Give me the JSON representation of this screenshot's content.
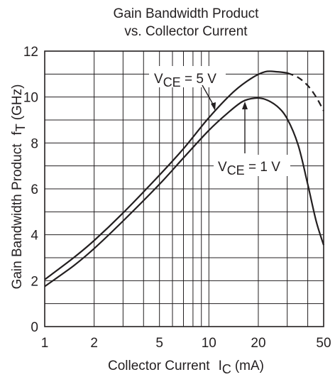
{
  "chart_data": {
    "type": "line",
    "title": [
      "Gain Bandwidth Product",
      "vs. Collector Current"
    ],
    "xlabel": {
      "main": "Collector Current",
      "sym": "I",
      "sub": "C",
      "unit": "(mA)"
    },
    "ylabel": {
      "main": "Gain Bandwidth Product",
      "sym": "f",
      "sub": "T",
      "unit": "(GHz)"
    },
    "x_scale": "log",
    "xlim": [
      1,
      50
    ],
    "ylim": [
      0,
      12
    ],
    "x_ticks": [
      1,
      2,
      5,
      10,
      20,
      50
    ],
    "x_tick_labels": [
      "1",
      "2",
      "5",
      "10",
      "20",
      "50"
    ],
    "y_ticks": [
      0,
      2,
      4,
      6,
      8,
      10,
      12
    ],
    "y_tick_labels": [
      "0",
      "2",
      "4",
      "6",
      "8",
      "10",
      "12"
    ],
    "x_gridlines": [
      1,
      2,
      3,
      4,
      5,
      6,
      7,
      8,
      9,
      10,
      20,
      30,
      40,
      50
    ],
    "y_gridlines": [
      0,
      1,
      2,
      3,
      4,
      5,
      6,
      7,
      8,
      9,
      10,
      11,
      12
    ],
    "grid": true,
    "series": [
      {
        "annotation": {
          "pre": "V",
          "sub": "CE",
          "post": " = 5 V"
        },
        "x": [
          1,
          1.5,
          2,
          3,
          5,
          7,
          10,
          14,
          18,
          22,
          26,
          30
        ],
        "y": [
          2.05,
          3.0,
          3.75,
          4.95,
          6.6,
          7.75,
          9.1,
          10.2,
          10.8,
          11.1,
          11.1,
          11.05
        ],
        "extension": {
          "style": "dashed",
          "x": [
            30,
            35,
            40,
            45,
            50
          ],
          "y": [
            11.05,
            10.85,
            10.5,
            10.0,
            9.4
          ]
        }
      },
      {
        "annotation": {
          "pre": "V",
          "sub": "CE",
          "post": " = 1 V"
        },
        "x": [
          1,
          1.5,
          2,
          3,
          5,
          7,
          10,
          13,
          16,
          19,
          22,
          26,
          30,
          35,
          40,
          45,
          50
        ],
        "y": [
          1.75,
          2.65,
          3.4,
          4.6,
          6.2,
          7.35,
          8.55,
          9.3,
          9.8,
          9.95,
          9.9,
          9.6,
          9.05,
          7.9,
          6.2,
          4.6,
          3.55
        ]
      }
    ]
  }
}
